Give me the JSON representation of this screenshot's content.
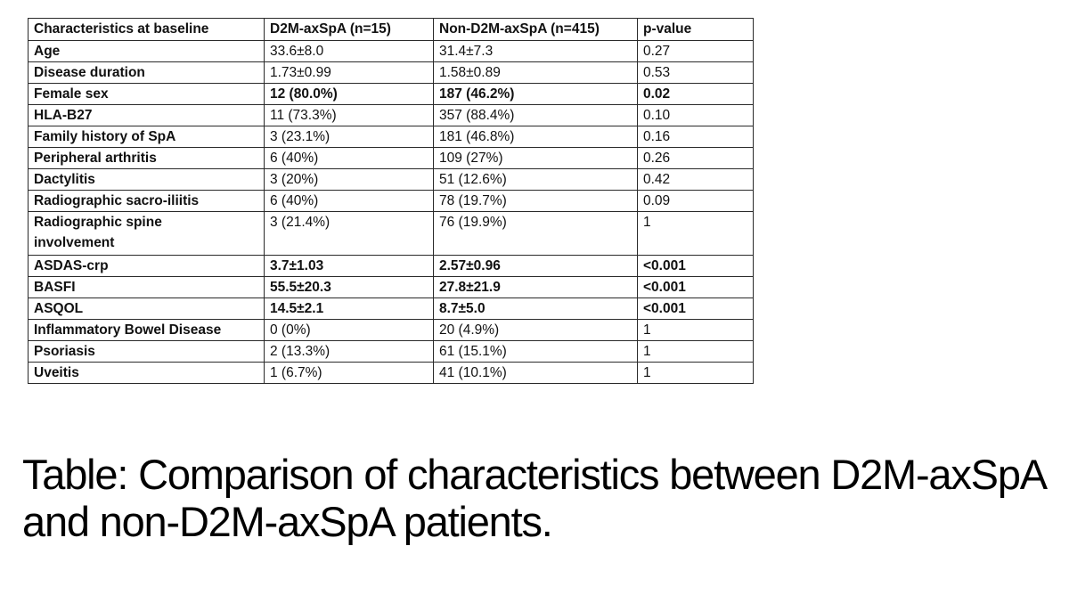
{
  "table": {
    "headers": [
      "Characteristics at baseline",
      "D2M-axSpA (n=15)",
      "Non-D2M-axSpA (n=415)",
      "p-value"
    ],
    "rows": [
      {
        "label": "Age",
        "d2m": "33.6±8.0",
        "non_d2m": "31.4±7.3",
        "p": "0.27",
        "bold": false,
        "tall": false
      },
      {
        "label": "Disease duration",
        "d2m": "1.73±0.99",
        "non_d2m": "1.58±0.89",
        "p": "0.53",
        "bold": false,
        "tall": false
      },
      {
        "label": "Female sex",
        "d2m": "12 (80.0%)",
        "non_d2m": "187 (46.2%)",
        "p": "0.02",
        "bold": true,
        "tall": false
      },
      {
        "label": "HLA-B27",
        "d2m": "11 (73.3%)",
        "non_d2m": "357 (88.4%)",
        "p": "0.10",
        "bold": false,
        "tall": false
      },
      {
        "label": "Family history of SpA",
        "d2m": "3 (23.1%)",
        "non_d2m": "181 (46.8%)",
        "p": "0.16",
        "bold": false,
        "tall": false
      },
      {
        "label": "Peripheral arthritis",
        "d2m": "6 (40%)",
        "non_d2m": "109 (27%)",
        "p": "0.26",
        "bold": false,
        "tall": false
      },
      {
        "label": "Dactylitis",
        "d2m": "3 (20%)",
        "non_d2m": "51 (12.6%)",
        "p": "0.42",
        "bold": false,
        "tall": false
      },
      {
        "label": "Radiographic sacro-iliitis",
        "d2m": "6 (40%)",
        "non_d2m": "78 (19.7%)",
        "p": "0.09",
        "bold": false,
        "tall": false
      },
      {
        "label": "Radiographic spine involvement",
        "d2m": "3 (21.4%)",
        "non_d2m": "76 (19.9%)",
        "p": "1",
        "bold": false,
        "tall": true
      },
      {
        "label": "ASDAS-crp",
        "d2m": "3.7±1.03",
        "non_d2m": "2.57±0.96",
        "p": "<0.001",
        "bold": true,
        "tall": false
      },
      {
        "label": "BASFI",
        "d2m": "55.5±20.3",
        "non_d2m": "27.8±21.9",
        "p": "<0.001",
        "bold": true,
        "tall": false
      },
      {
        "label": "ASQOL",
        "d2m": "14.5±2.1",
        "non_d2m": "8.7±5.0",
        "p": "<0.001",
        "bold": true,
        "tall": false
      },
      {
        "label": "Inflammatory Bowel Disease",
        "d2m": "0 (0%)",
        "non_d2m": "20 (4.9%)",
        "p": "1",
        "bold": false,
        "tall": false
      },
      {
        "label": "Psoriasis",
        "d2m": "2 (13.3%)",
        "non_d2m": "61 (15.1%)",
        "p": "1",
        "bold": false,
        "tall": false
      },
      {
        "label": "Uveitis",
        "d2m": "1 (6.7%)",
        "non_d2m": "41 (10.1%)",
        "p": "1",
        "bold": false,
        "tall": false
      }
    ]
  },
  "caption": "Table: Comparison of characteristics between D2M-axSpA and non-D2M-axSpA patients.",
  "colors": {
    "border": "#2a2a2a",
    "text": "#111111",
    "background": "#ffffff"
  }
}
